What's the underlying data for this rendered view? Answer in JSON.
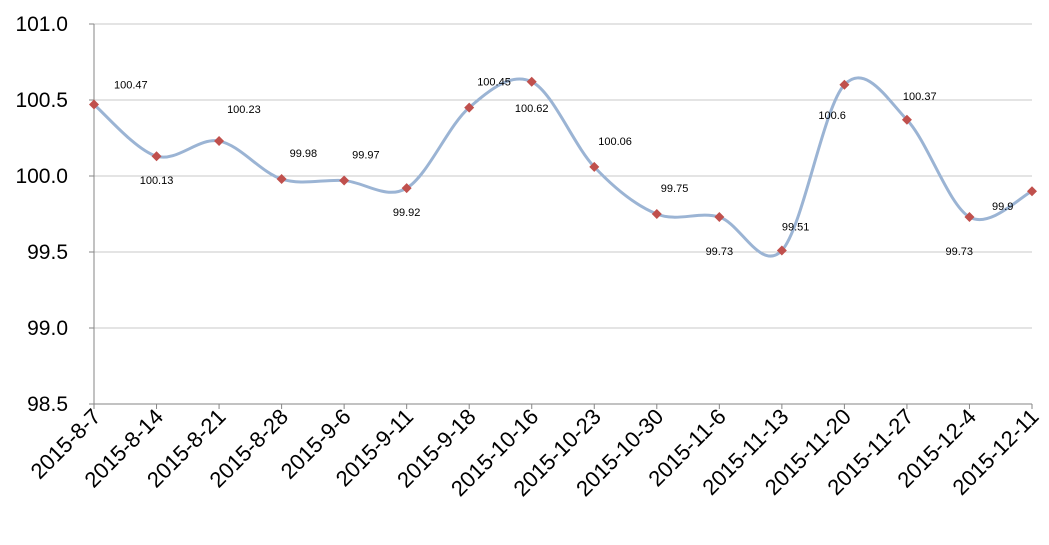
{
  "chart_data": {
    "type": "line",
    "smooth": true,
    "categories": [
      "2015-8-7",
      "2015-8-14",
      "2015-8-21",
      "2015-8-28",
      "2015-9-6",
      "2015-9-11",
      "2015-9-18",
      "2015-10-16",
      "2015-10-23",
      "2015-10-30",
      "2015-11-6",
      "2015-11-13",
      "2015-11-20",
      "2015-11-27",
      "2015-12-4",
      "2015-12-11"
    ],
    "values": [
      100.47,
      100.13,
      100.23,
      99.98,
      99.97,
      99.92,
      100.45,
      100.62,
      100.06,
      99.75,
      99.73,
      99.51,
      100.6,
      100.37,
      99.73,
      99.9
    ],
    "data_labels": [
      "100.47",
      "100.13",
      "100.23",
      "99.98",
      "99.97",
      "99.92",
      "100.45",
      "100.62",
      "100.06",
      "99.75",
      "99.73",
      "99.51",
      "100.6",
      "100.37",
      "99.73",
      "99.9"
    ],
    "ylim": [
      98.5,
      101.0
    ],
    "yticks": [
      98.5,
      99.0,
      99.5,
      100.0,
      100.5,
      101.0
    ],
    "ytick_labels": [
      "98.5",
      "99.0",
      "99.5",
      "100.0",
      "100.5",
      "101.0"
    ],
    "grid": true,
    "legend": "none",
    "colors": {
      "line": "#9BB4D4",
      "marker": "#C0504D",
      "grid": "#C8C8C8",
      "axis": "#868686"
    }
  }
}
